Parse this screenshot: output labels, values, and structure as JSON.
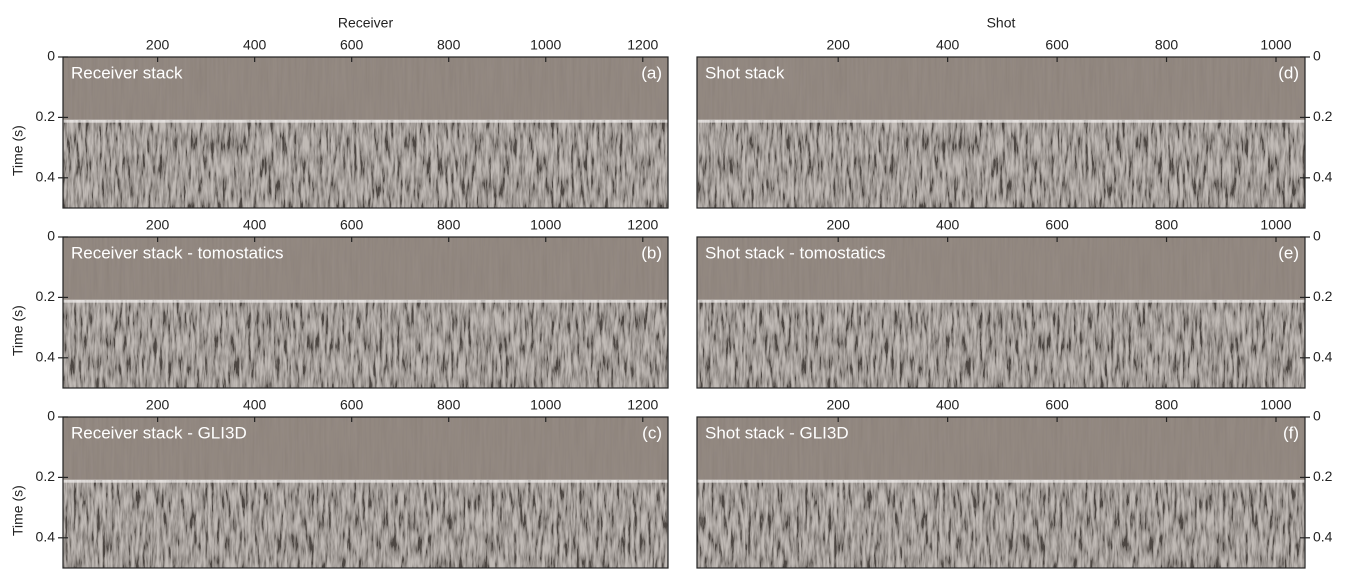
{
  "chart_data": [
    {
      "type": "seismic",
      "title": "Receiver stack",
      "panel_label": "(a)",
      "xlabel": "Receiver",
      "ylabel": "Time (s)",
      "y_axis_side": "left",
      "xlim": [
        5,
        1252
      ],
      "xticks": [
        200,
        400,
        600,
        800,
        1000,
        1200
      ],
      "ylim": [
        0,
        0.5
      ],
      "yticks": [
        0,
        0.2,
        0.4
      ]
    },
    {
      "type": "seismic",
      "title": "Receiver stack - tomostatics",
      "panel_label": "(b)",
      "ylabel": "Time (s)",
      "y_axis_side": "left",
      "xlim": [
        5,
        1252
      ],
      "xticks": [
        200,
        400,
        600,
        800,
        1000,
        1200
      ],
      "ylim": [
        0,
        0.5
      ],
      "yticks": [
        0,
        0.2,
        0.4
      ]
    },
    {
      "type": "seismic",
      "title": "Receiver stack - GLI3D",
      "panel_label": "(c)",
      "ylabel": "Time (s)",
      "y_axis_side": "left",
      "xlim": [
        5,
        1252
      ],
      "xticks": [
        200,
        400,
        600,
        800,
        1000,
        1200
      ],
      "ylim": [
        0,
        0.5
      ],
      "yticks": [
        0,
        0.2,
        0.4
      ]
    },
    {
      "type": "seismic",
      "title": "Shot stack",
      "panel_label": "(d)",
      "xlabel": "Shot",
      "y_axis_side": "right",
      "xlim": [
        -58,
        1053
      ],
      "xticks": [
        200,
        400,
        600,
        800,
        1000
      ],
      "ylim": [
        0,
        0.5
      ],
      "yticks": [
        0,
        0.2,
        0.4
      ]
    },
    {
      "type": "seismic",
      "title": "Shot stack - tomostatics",
      "panel_label": "(e)",
      "y_axis_side": "right",
      "xlim": [
        -58,
        1053
      ],
      "xticks": [
        200,
        400,
        600,
        800,
        1000
      ],
      "ylim": [
        0,
        0.5
      ],
      "yticks": [
        0,
        0.2,
        0.4
      ]
    },
    {
      "type": "seismic",
      "title": "Shot stack - GLI3D",
      "panel_label": "(f)",
      "y_axis_side": "right",
      "xlim": [
        -58,
        1053
      ],
      "xticks": [
        200,
        400,
        600,
        800,
        1000
      ],
      "ylim": [
        0,
        0.5
      ],
      "yticks": [
        0,
        0.2,
        0.4
      ]
    }
  ]
}
